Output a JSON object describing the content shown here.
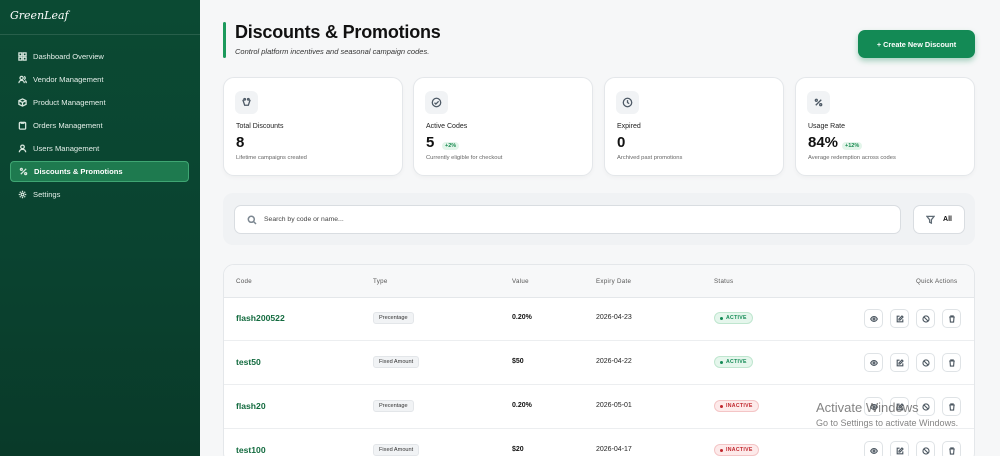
{
  "sidebar": {
    "brand": "GreenLeaf",
    "items": [
      {
        "label": "Dashboard Overview",
        "icon": "grid-icon"
      },
      {
        "label": "Vendor Management",
        "icon": "users-icon"
      },
      {
        "label": "Product Management",
        "icon": "box-icon"
      },
      {
        "label": "Orders Management",
        "icon": "clipboard-icon"
      },
      {
        "label": "Users Management",
        "icon": "user-icon"
      },
      {
        "label": "Discounts & Promotions",
        "icon": "percent-icon",
        "active": true
      },
      {
        "label": "Settings",
        "icon": "gear-icon"
      }
    ]
  },
  "header": {
    "title": "Discounts & Promotions",
    "subtitle": "Control platform incentives and seasonal campaign codes.",
    "create_label": "+ Create New Discount"
  },
  "stats": [
    {
      "label": "Total Discounts",
      "value": "8",
      "trend": "",
      "desc": "Lifetime campaigns created",
      "icon": "tag-icon"
    },
    {
      "label": "Active Codes",
      "value": "5",
      "trend": "+2%",
      "desc": "Currently eligible for checkout",
      "icon": "check-circle-icon"
    },
    {
      "label": "Expired",
      "value": "0",
      "trend": "",
      "desc": "Archived past promotions",
      "icon": "clock-icon"
    },
    {
      "label": "Usage Rate",
      "value": "84%",
      "trend": "+12%",
      "desc": "Average redemption across codes",
      "icon": "percent-icon"
    }
  ],
  "search": {
    "placeholder": "Search by code or name...",
    "filter_label": "All"
  },
  "table": {
    "headers": [
      "Code",
      "Type",
      "Value",
      "Expiry Date",
      "Status",
      "Quick Actions"
    ],
    "rows": [
      {
        "code": "flash200522",
        "type": "Precentage",
        "value": "0.20%",
        "expiry": "2026-04-23",
        "status": "ACTIVE"
      },
      {
        "code": "test50",
        "type": "Fixed Amount",
        "value": "$50",
        "expiry": "2026-04-22",
        "status": "ACTIVE"
      },
      {
        "code": "flash20",
        "type": "Precentage",
        "value": "0.20%",
        "expiry": "2026-05-01",
        "status": "INACTIVE"
      },
      {
        "code": "test100",
        "type": "Fixed Amount",
        "value": "$20",
        "expiry": "2026-04-17",
        "status": "INACTIVE"
      }
    ]
  },
  "watermark": {
    "title": "Activate Windows",
    "subtitle": "Go to Settings to activate Windows."
  },
  "colors": {
    "sidebar_bg": "#0b4a33",
    "accent": "#138a55",
    "active_status": "#138a55",
    "inactive_status": "#c0262d"
  }
}
